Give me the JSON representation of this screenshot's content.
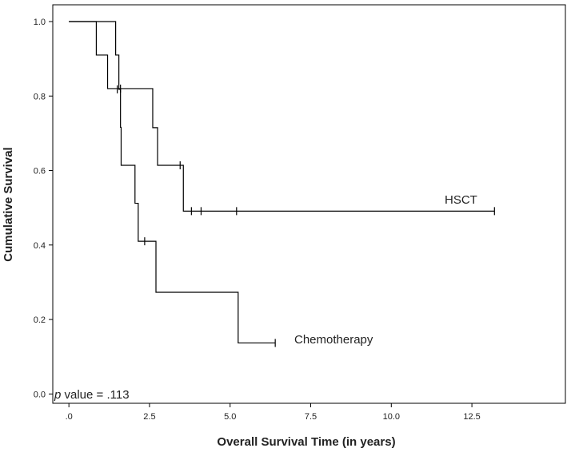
{
  "chart_data": {
    "type": "line",
    "xlabel": "Overall Survival Time (in years)",
    "ylabel": "Cumulative Survival",
    "xlim": [
      -0.5,
      15.4
    ],
    "ylim": [
      -0.025,
      1.045
    ],
    "x_ticks": [
      0,
      2.5,
      5,
      7.5,
      10,
      12.5
    ],
    "x_tick_labels": [
      ".0",
      "2.5",
      "5.0",
      "7.5",
      "10.0",
      "12.5"
    ],
    "y_ticks": [
      0,
      0.2,
      0.4,
      0.6,
      0.8,
      1.0
    ],
    "y_tick_labels": [
      "0.0",
      "0.2",
      "0.4",
      "0.6",
      "0.8",
      "1.0"
    ],
    "grid": false,
    "series": [
      {
        "name": "HSCT",
        "color": "#000000",
        "steps": [
          [
            0,
            1.0
          ],
          [
            0.85,
            0.91
          ],
          [
            1.2,
            0.82
          ],
          [
            2.6,
            0.715
          ],
          [
            2.75,
            0.614
          ],
          [
            3.55,
            0.491
          ],
          [
            13.2,
            0.491
          ]
        ],
        "censored": [
          [
            1.6,
            0.82
          ],
          [
            3.45,
            0.614
          ],
          [
            3.8,
            0.491
          ],
          [
            4.1,
            0.491
          ],
          [
            5.2,
            0.491
          ],
          [
            13.2,
            0.491
          ]
        ]
      },
      {
        "name": "Chemotherapy",
        "color": "#000000",
        "steps": [
          [
            0,
            1.0
          ],
          [
            1.45,
            0.91
          ],
          [
            1.55,
            0.818
          ],
          [
            1.6,
            0.716
          ],
          [
            1.62,
            0.614
          ],
          [
            2.05,
            0.512
          ],
          [
            2.15,
            0.41
          ],
          [
            2.7,
            0.273
          ],
          [
            5.25,
            0.137
          ],
          [
            6.4,
            0.137
          ]
        ],
        "censored": [
          [
            1.5,
            0.818
          ],
          [
            2.35,
            0.41
          ],
          [
            6.4,
            0.137
          ]
        ]
      }
    ],
    "labels": [
      {
        "series": "HSCT",
        "text": "HSCT"
      },
      {
        "series": "Chemotherapy",
        "text": "Chemotherapy"
      }
    ],
    "annotation": {
      "italic": "p",
      "rest": " value = .113"
    }
  }
}
